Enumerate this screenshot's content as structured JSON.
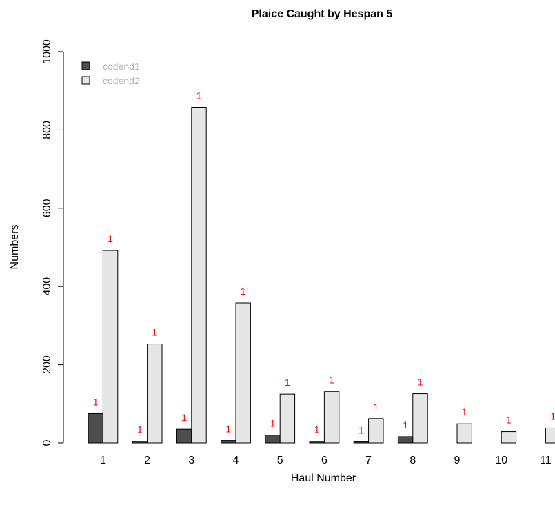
{
  "chart_data": {
    "type": "bar",
    "title": "Plaice Caught by Hespan 5",
    "xlabel": "Haul Number",
    "ylabel": "Numbers",
    "categories": [
      "1",
      "2",
      "3",
      "4",
      "5",
      "6",
      "7",
      "8",
      "9",
      "10",
      "11"
    ],
    "ylim": [
      0,
      1000
    ],
    "yticks": [
      "0",
      "200",
      "400",
      "600",
      "800",
      "1000"
    ],
    "series": [
      {
        "name": "codend1",
        "color": "#4d4d4d",
        "values": [
          75,
          4,
          35,
          6,
          20,
          4,
          3,
          16,
          null,
          null,
          null
        ],
        "labels": [
          "1",
          "1",
          "1",
          "1",
          "1",
          "1",
          "1",
          "1",
          null,
          null,
          null
        ]
      },
      {
        "name": "codend2",
        "color": "#e6e6e6",
        "values": [
          492,
          253,
          858,
          358,
          125,
          131,
          62,
          126,
          49,
          29,
          38
        ],
        "labels": [
          "1",
          "1",
          "1",
          "1",
          "1",
          "1",
          "1",
          "1",
          "1",
          "1",
          "1"
        ]
      }
    ],
    "legend_position": "top-left",
    "grid": false
  }
}
